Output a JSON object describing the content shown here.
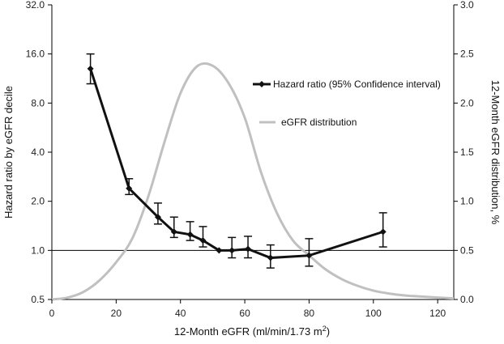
{
  "chart_data": {
    "type": "line",
    "xlabel": "12-Month eGFR (ml/min/1.73 m",
    "xlabel_sup": "2",
    "xlabel_close": ")",
    "ylabel_left": "Hazard ratio by eGFR decile",
    "ylabel_right": "12-Month eGFR distribution, %",
    "xlim": [
      0,
      125
    ],
    "ylim_left": [
      0.5,
      32.0
    ],
    "ylim_left_scale": "log2",
    "ylim_right": [
      0.0,
      3.0
    ],
    "x_ticks": [
      "0",
      "20",
      "40",
      "60",
      "80",
      "100",
      "120"
    ],
    "y_left_ticks": [
      "0.5",
      "1.0",
      "2.0",
      "4.0",
      "8.0",
      "16.0",
      "32.0"
    ],
    "y_right_ticks": [
      "0.0",
      "0.5",
      "1.0",
      "1.5",
      "2.0",
      "2.5",
      "3.0"
    ],
    "reference_line_y": 1.0,
    "legend_position": "upper-right",
    "series": [
      {
        "name": "Hazard ratio (95% Confidence interval)",
        "axis": "left",
        "color": "#111111",
        "marker": "diamond",
        "x": [
          12,
          24,
          33,
          38,
          43,
          47,
          52,
          56,
          61,
          68,
          80,
          103
        ],
        "y": [
          13.0,
          2.4,
          1.6,
          1.3,
          1.25,
          1.15,
          1.0,
          1.0,
          1.02,
          0.9,
          0.93,
          1.3
        ],
        "ci_low": [
          10.5,
          2.2,
          1.45,
          1.2,
          1.15,
          1.05,
          1.0,
          0.9,
          0.9,
          0.78,
          0.8,
          1.05
        ],
        "ci_high": [
          16.0,
          2.75,
          1.95,
          1.6,
          1.5,
          1.4,
          1.0,
          1.2,
          1.22,
          1.08,
          1.18,
          1.7
        ]
      },
      {
        "name": "eGFR distribution",
        "axis": "right",
        "color": "#c0c0c0",
        "x": [
          0,
          5,
          10,
          15,
          20,
          25,
          30,
          35,
          40,
          45,
          50,
          55,
          60,
          65,
          70,
          75,
          80,
          85,
          90,
          95,
          100,
          105,
          110,
          115,
          120,
          125
        ],
        "y": [
          0.0,
          0.02,
          0.08,
          0.2,
          0.38,
          0.62,
          1.05,
          1.6,
          2.1,
          2.37,
          2.38,
          2.2,
          1.85,
          1.3,
          0.88,
          0.6,
          0.45,
          0.31,
          0.21,
          0.14,
          0.09,
          0.06,
          0.04,
          0.03,
          0.02,
          0.01
        ]
      }
    ]
  }
}
